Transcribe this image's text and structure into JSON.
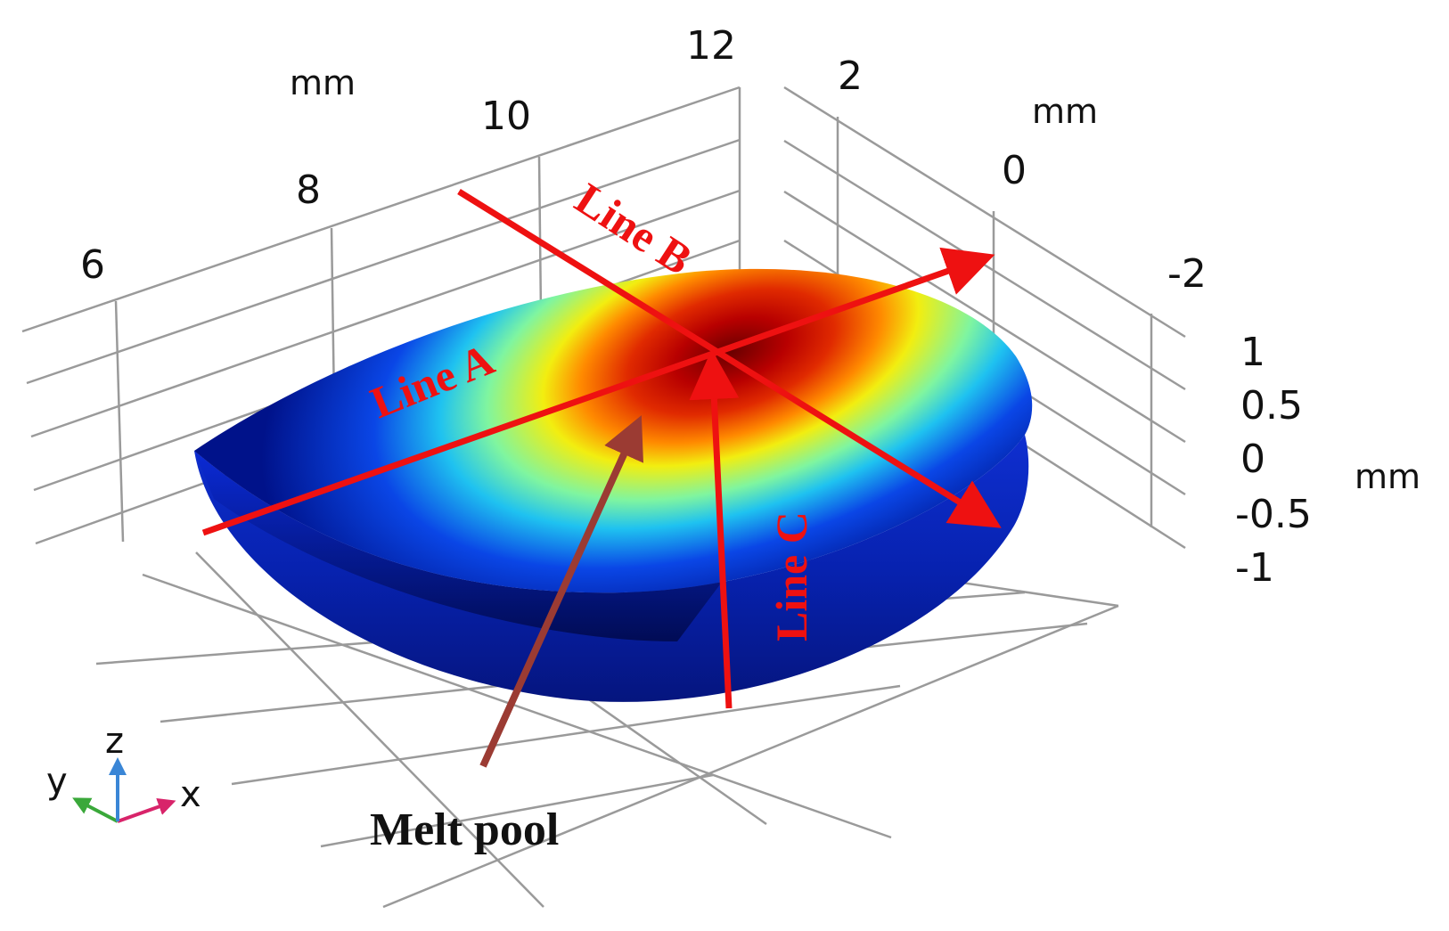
{
  "axes": {
    "x_ticks": [
      "6",
      "8",
      "10",
      "12"
    ],
    "x_unit": "mm",
    "y_ticks": [
      "2",
      "0",
      "-2"
    ],
    "y_unit": "mm",
    "z_ticks": [
      "1",
      "0.5",
      "0",
      "-0.5",
      "-1"
    ],
    "z_unit": "mm"
  },
  "lines": {
    "a": "Line A",
    "b": "Line B",
    "c": "Line C"
  },
  "callout": "Melt pool",
  "triad": {
    "x": "x",
    "y": "y",
    "z": "z"
  },
  "colors": {
    "line_red": "#ee1111",
    "callout_arrow": "#9b3b33",
    "colormap": [
      "#000a7a",
      "#0a2de0",
      "#22d6ff",
      "#f4f000",
      "#ff7a00",
      "#d80000",
      "#7a0000"
    ],
    "triad_x": "#d8246a",
    "triad_y": "#3aa83a",
    "triad_z": "#3a86d6"
  }
}
